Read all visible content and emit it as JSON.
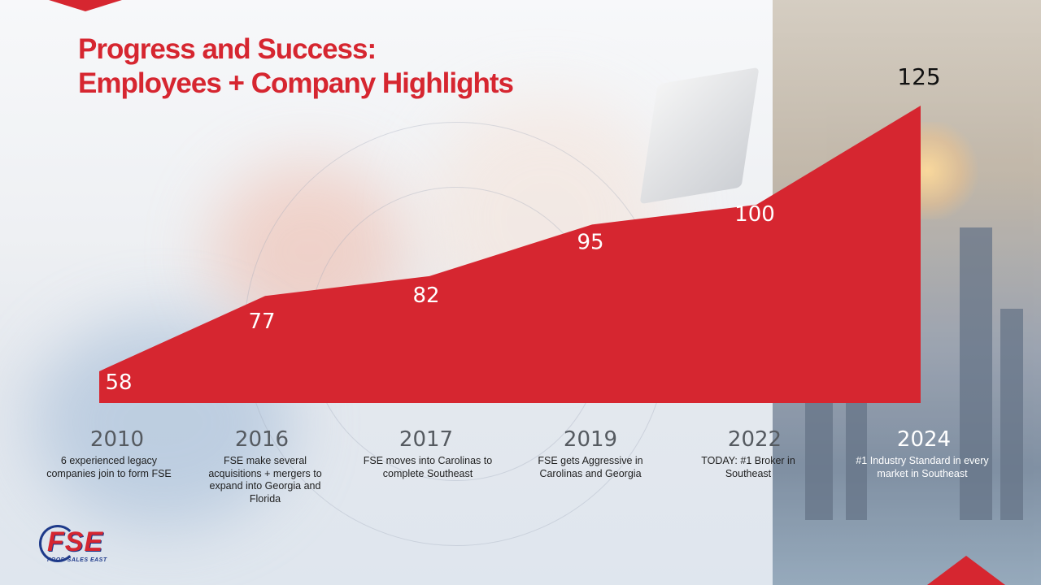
{
  "slide": {
    "title_line1": "Progress and Success:",
    "title_line2": "Employees + Company Highlights"
  },
  "chart_data": {
    "type": "area",
    "categories": [
      "2010",
      "2016",
      "2017",
      "2019",
      "2022",
      "2024"
    ],
    "values": [
      58,
      77,
      82,
      95,
      100,
      125
    ],
    "data_labels": [
      "58",
      "77",
      "82",
      "95",
      "100",
      "125"
    ],
    "descriptions": [
      "6 experienced legacy companies join to form FSE",
      "FSE make several acquisitions + mergers to expand into Georgia and Florida",
      "FSE moves into Carolinas to complete Southeast",
      "FSE gets Aggressive in Carolinas and Georgia",
      "TODAY: #1 Broker in Southeast",
      "#1 Industry Standard in every market in Southeast"
    ],
    "ylim": [
      50,
      125
    ],
    "grid": false,
    "legend": "none",
    "fill_color": "#d62630"
  },
  "logo": {
    "text": "FSE",
    "subtext": "FOOD SALES EAST",
    "primary_color": "#d62630",
    "secondary_color": "#1e3a8a"
  }
}
